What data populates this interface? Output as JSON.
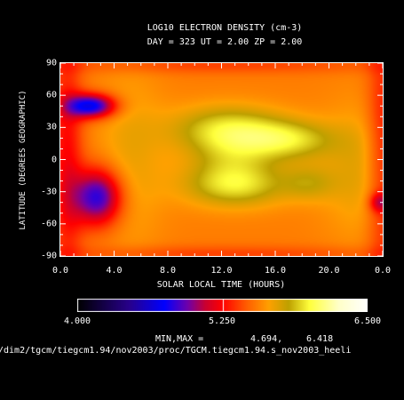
{
  "chart_data": {
    "type": "heatmap",
    "title": "LOG10 ELECTRON DENSITY (cm-3)",
    "subtitle": "DAY = 323  UT =  2.00  ZP =   2.00",
    "xlabel": "SOLAR LOCAL TIME (HOURS)",
    "ylabel": "LATITUDE (DEGREES GEOGRAPHIC)",
    "xlim": [
      0,
      24
    ],
    "ylim": [
      -90,
      90
    ],
    "x_tick_labels": [
      "0.0",
      "4.0",
      "8.0",
      "12.0",
      "16.0",
      "20.0",
      "0.0"
    ],
    "y_tick_labels": [
      "90",
      "60",
      "30",
      "0",
      "-30",
      "-60",
      "-90"
    ],
    "colorbar": {
      "min": 4.0,
      "max": 6.5,
      "tick_labels": [
        "4.000",
        "5.250",
        "6.500"
      ]
    },
    "minmax_label": "MIN,MAX =",
    "data_min": "4.694,",
    "data_max": "6.418",
    "footer_path": "/dim2/tgcm/tiegcm1.94/nov2003/proc/TGCM.tiegcm1.94.s_nov2003_heeli",
    "colors": {
      "background": "#000000",
      "colormap": [
        "#000000",
        "#2a0090",
        "#0000ff",
        "#6a00b0",
        "#c00030",
        "#ff0000",
        "#ff6000",
        "#ffa000",
        "#c0a000",
        "#ffff40",
        "#ffffc8",
        "#ffffff"
      ]
    }
  }
}
